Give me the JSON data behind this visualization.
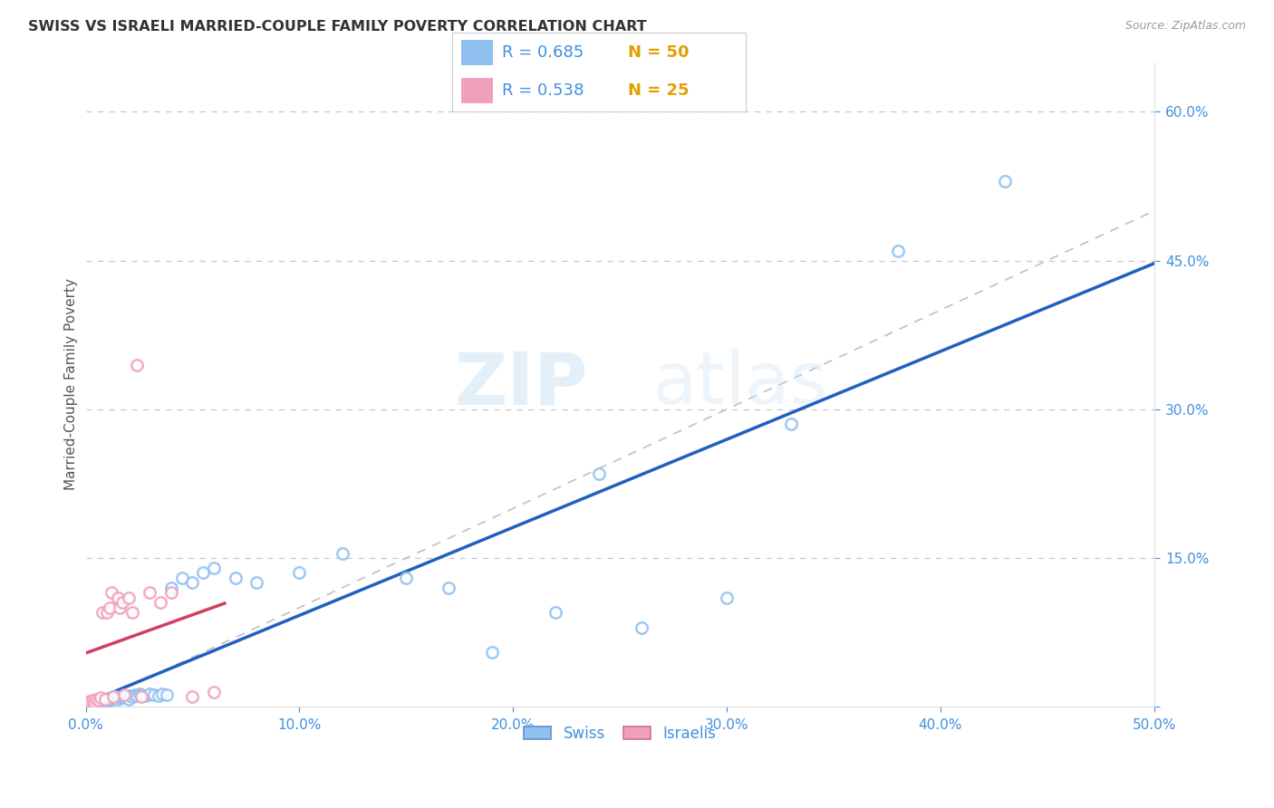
{
  "title": "SWISS VS ISRAELI MARRIED-COUPLE FAMILY POVERTY CORRELATION CHART",
  "source": "Source: ZipAtlas.com",
  "ylabel": "Married-Couple Family Poverty",
  "xlim": [
    0.0,
    0.5
  ],
  "ylim": [
    0.0,
    0.65
  ],
  "xticks": [
    0.0,
    0.1,
    0.2,
    0.3,
    0.4,
    0.5
  ],
  "yticks": [
    0.0,
    0.15,
    0.3,
    0.45,
    0.6
  ],
  "background_color": "#ffffff",
  "grid_color": "#c8c8c8",
  "watermark_zip": "ZIP",
  "watermark_atlas": "atlas",
  "swiss_dot_color": "#90C0F0",
  "swiss_dot_edge": "#6090D0",
  "israeli_dot_color": "#F0A0BC",
  "israeli_dot_edge": "#D07090",
  "swiss_line_color": "#2060C0",
  "israeli_line_color": "#D04060",
  "diagonal_color": "#c0c0c0",
  "tick_color": "#4090E0",
  "swiss_R": "0.685",
  "swiss_N": "50",
  "israeli_R": "0.538",
  "israeli_N": "25",
  "legend_text_color": "#4090E0",
  "legend_N_color": "#E0A000",
  "swiss_label": "Swiss",
  "israeli_label": "Israelis",
  "swiss_x": [
    0.002,
    0.003,
    0.004,
    0.005,
    0.006,
    0.007,
    0.008,
    0.009,
    0.01,
    0.011,
    0.012,
    0.013,
    0.014,
    0.015,
    0.016,
    0.017,
    0.018,
    0.019,
    0.02,
    0.021,
    0.022,
    0.023,
    0.024,
    0.025,
    0.026,
    0.028,
    0.03,
    0.032,
    0.034,
    0.036,
    0.038,
    0.04,
    0.045,
    0.05,
    0.055,
    0.06,
    0.07,
    0.08,
    0.1,
    0.12,
    0.15,
    0.17,
    0.19,
    0.22,
    0.24,
    0.26,
    0.3,
    0.33,
    0.38,
    0.43
  ],
  "swiss_y": [
    0.005,
    0.004,
    0.006,
    0.005,
    0.007,
    0.006,
    0.008,
    0.007,
    0.006,
    0.007,
    0.008,
    0.009,
    0.01,
    0.008,
    0.009,
    0.01,
    0.009,
    0.01,
    0.008,
    0.011,
    0.01,
    0.012,
    0.011,
    0.013,
    0.012,
    0.011,
    0.013,
    0.012,
    0.011,
    0.013,
    0.012,
    0.12,
    0.13,
    0.125,
    0.135,
    0.14,
    0.13,
    0.125,
    0.135,
    0.155,
    0.13,
    0.12,
    0.055,
    0.095,
    0.235,
    0.08,
    0.11,
    0.285,
    0.46,
    0.53
  ],
  "israeli_x": [
    0.002,
    0.003,
    0.004,
    0.005,
    0.006,
    0.007,
    0.008,
    0.009,
    0.01,
    0.011,
    0.012,
    0.013,
    0.015,
    0.016,
    0.017,
    0.018,
    0.02,
    0.022,
    0.024,
    0.026,
    0.03,
    0.035,
    0.04,
    0.05,
    0.06
  ],
  "israeli_y": [
    0.006,
    0.007,
    0.005,
    0.008,
    0.007,
    0.009,
    0.095,
    0.008,
    0.095,
    0.1,
    0.115,
    0.01,
    0.11,
    0.1,
    0.105,
    0.012,
    0.11,
    0.095,
    0.345,
    0.01,
    0.115,
    0.105,
    0.115,
    0.01,
    0.015
  ]
}
